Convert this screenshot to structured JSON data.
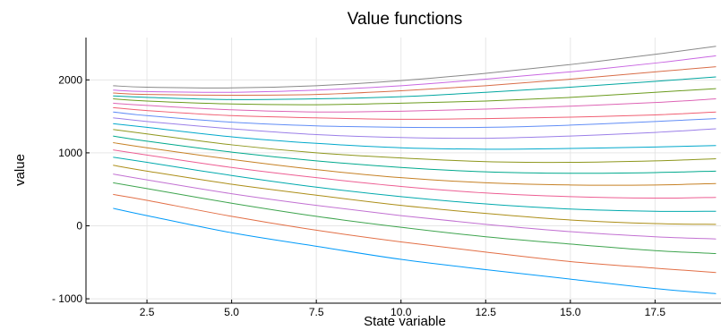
{
  "chart_data": {
    "type": "line",
    "title": "Value functions",
    "xlabel": "State variable",
    "ylabel": "value",
    "xlim": [
      0.7,
      19.5
    ],
    "ylim": [
      -1060,
      2580
    ],
    "x_ticks": [
      2.5,
      5.0,
      7.5,
      10.0,
      12.5,
      15.0,
      17.5
    ],
    "x_tick_labels": [
      "2.5",
      "5.0",
      "7.5",
      "10.0",
      "12.5",
      "15.0",
      "17.5"
    ],
    "y_ticks": [
      -1000,
      0,
      1000,
      2000
    ],
    "y_tick_labels": [
      "- 1000",
      "0",
      "1000",
      "2000"
    ],
    "grid": true,
    "legend": "none",
    "x": [
      1.5,
      2.5,
      5.0,
      7.5,
      10.0,
      12.5,
      15.0,
      17.5,
      19.3
    ],
    "series": [
      {
        "color": "#009af9",
        "values": [
          240,
          140,
          -95,
          -280,
          -460,
          -600,
          -730,
          -860,
          -930
        ]
      },
      {
        "color": "#e26f46",
        "values": [
          430,
          350,
          130,
          -60,
          -220,
          -360,
          -490,
          -580,
          -640
        ]
      },
      {
        "color": "#3ea44e",
        "values": [
          590,
          510,
          310,
          130,
          -20,
          -150,
          -250,
          -340,
          -380
        ]
      },
      {
        "color": "#c271d2",
        "values": [
          710,
          630,
          440,
          280,
          140,
          20,
          -80,
          -150,
          -180
        ]
      },
      {
        "color": "#ac8e18",
        "values": [
          830,
          750,
          570,
          420,
          280,
          170,
          80,
          30,
          20
        ]
      },
      {
        "color": "#00a9ad",
        "values": [
          940,
          870,
          690,
          530,
          400,
          300,
          230,
          200,
          200
        ]
      },
      {
        "color": "#ed5e93",
        "values": [
          1040,
          970,
          800,
          660,
          540,
          450,
          400,
          380,
          390
        ]
      },
      {
        "color": "#c68125",
        "values": [
          1140,
          1070,
          910,
          770,
          660,
          590,
          560,
          560,
          580
        ]
      },
      {
        "color": "#00a98d",
        "values": [
          1230,
          1160,
          1010,
          890,
          800,
          740,
          720,
          730,
          750
        ]
      },
      {
        "color": "#8e971d",
        "values": [
          1320,
          1260,
          1110,
          1000,
          930,
          880,
          870,
          890,
          920
        ]
      },
      {
        "color": "#00a8cb",
        "values": [
          1400,
          1350,
          1220,
          1130,
          1070,
          1050,
          1060,
          1080,
          1100
        ]
      },
      {
        "color": "#9b7fe8",
        "values": [
          1480,
          1430,
          1330,
          1250,
          1210,
          1200,
          1230,
          1280,
          1330
        ]
      },
      {
        "color": "#618df6",
        "values": [
          1560,
          1510,
          1420,
          1370,
          1350,
          1350,
          1380,
          1430,
          1470
        ]
      },
      {
        "color": "#f05f73",
        "values": [
          1620,
          1580,
          1510,
          1480,
          1460,
          1470,
          1490,
          1520,
          1560
        ]
      },
      {
        "color": "#dd64b5",
        "values": [
          1680,
          1650,
          1590,
          1560,
          1570,
          1600,
          1640,
          1690,
          1740
        ]
      },
      {
        "color": "#6b9b1e",
        "values": [
          1740,
          1710,
          1670,
          1660,
          1680,
          1710,
          1760,
          1830,
          1880
        ]
      },
      {
        "color": "#00a6a0",
        "values": [
          1780,
          1760,
          1730,
          1740,
          1770,
          1830,
          1900,
          1980,
          2040
        ]
      },
      {
        "color": "#d86d48",
        "values": [
          1820,
          1800,
          1790,
          1800,
          1850,
          1920,
          2010,
          2110,
          2180
        ]
      },
      {
        "color": "#c967e2",
        "values": [
          1860,
          1840,
          1830,
          1860,
          1920,
          2010,
          2110,
          2230,
          2330
        ]
      },
      {
        "color": "#888888",
        "values": [
          1920,
          1900,
          1890,
          1920,
          1990,
          2090,
          2210,
          2350,
          2460
        ]
      }
    ]
  }
}
